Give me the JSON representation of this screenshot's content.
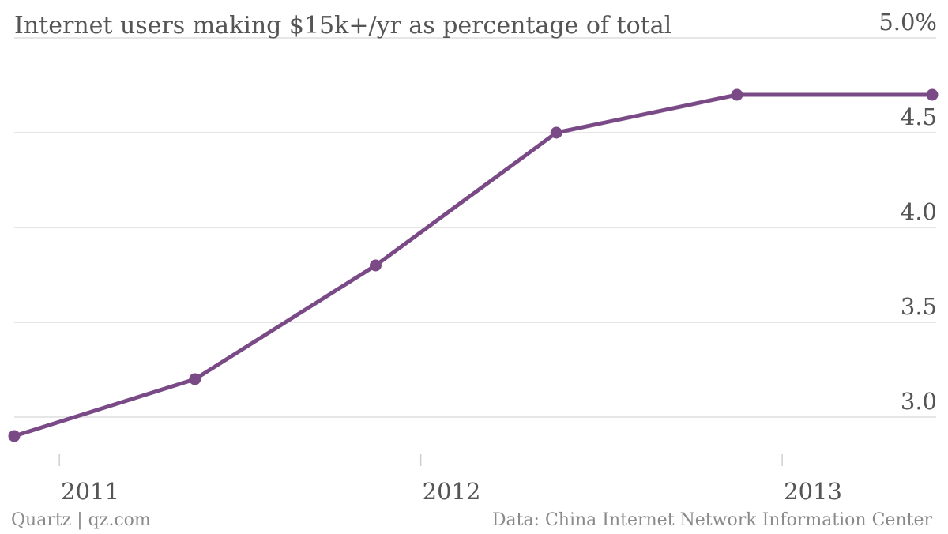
{
  "chart_data": {
    "type": "line",
    "title": "Internet users making $15k+/yr as percentage of total",
    "y_tick_labels": [
      "3.0",
      "3.5",
      "4.0",
      "4.5",
      "5.0%"
    ],
    "y_ticks": [
      3.0,
      3.5,
      4.0,
      4.5,
      5.0
    ],
    "ylim": [
      2.75,
      5.0
    ],
    "x_tick_labels": [
      "2011",
      "2012",
      "2013"
    ],
    "x_ticks": [
      2011,
      2012,
      2013
    ],
    "xlim": [
      2010.875,
      2013.415
    ],
    "grid": true,
    "series": [
      {
        "x": [
          2010.875,
          2011.375,
          2011.875,
          2012.375,
          2012.875,
          2013.415
        ],
        "values": [
          2.9,
          3.2,
          3.8,
          4.5,
          4.7,
          4.7
        ]
      }
    ],
    "colors": {
      "line": "#7a4a86",
      "grid": "#dedede",
      "title_text": "#555555",
      "tick_text": "#555555",
      "axis": "#cfcfcf"
    }
  },
  "footer": {
    "source_left": "Quartz | qz.com",
    "source_right": "Data: China Internet Network Information Center"
  }
}
